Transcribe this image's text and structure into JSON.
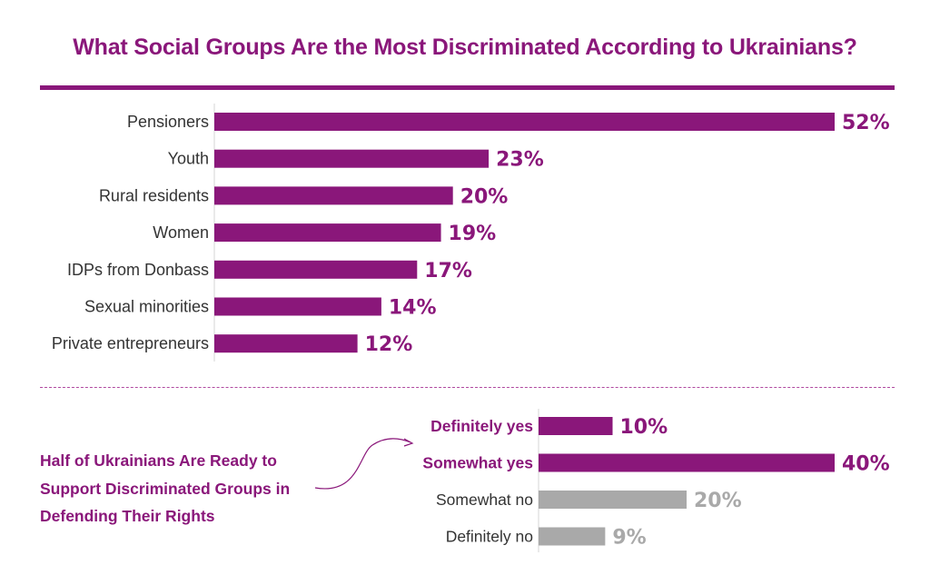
{
  "colors": {
    "accent": "#8a177a",
    "muted": "#a9a9a9",
    "label": "#333333"
  },
  "chart_data": [
    {
      "type": "bar",
      "orientation": "horizontal",
      "title": "What Social Groups Are the Most Discriminated According to Ukrainians?",
      "categories": [
        "Pensioners",
        "Youth",
        "Rural residents",
        "Women",
        "IDPs from Donbass",
        "Sexual minorities",
        "Private entrepreneurs"
      ],
      "values": [
        52,
        23,
        20,
        19,
        17,
        14,
        12
      ],
      "value_labels": [
        "52%",
        "23%",
        "20%",
        "19%",
        "17%",
        "14%",
        "12%"
      ],
      "unit": "%",
      "xlim": [
        0,
        52
      ],
      "grid": false
    },
    {
      "type": "bar",
      "orientation": "horizontal",
      "title": "Half of Ukrainians Are Ready to Support Discriminated Groups in Defending Their Rights",
      "categories": [
        "Definitely yes",
        "Somewhat yes",
        "Somewhat no",
        "Definitely no"
      ],
      "values": [
        10,
        40,
        20,
        9
      ],
      "value_labels": [
        "10%",
        "40%",
        "20%",
        "9%"
      ],
      "highlighted": [
        true,
        true,
        false,
        false
      ],
      "unit": "%",
      "xlim": [
        0,
        40
      ],
      "grid": false
    }
  ]
}
